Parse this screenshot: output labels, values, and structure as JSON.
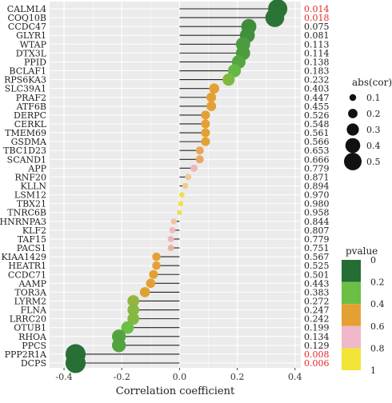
{
  "chart_data": {
    "type": "lollipop",
    "xlabel": "Correlation coefficient",
    "xlim": [
      -0.45,
      0.42
    ],
    "x_ticks": [
      -0.4,
      -0.2,
      0.0,
      0.2,
      0.4
    ],
    "x_tick_labels": [
      "-0.4",
      "-0.2",
      "0.0",
      "0.2",
      "0.4"
    ],
    "grid": true,
    "highlight_color": "#e8272a",
    "highlight_threshold": 0.05,
    "genes": [
      {
        "name": "CALML4",
        "cor": 0.34,
        "pvalue": 0.014
      },
      {
        "name": "COQ10B",
        "cor": 0.33,
        "pvalue": 0.018
      },
      {
        "name": "CCDC47",
        "cor": 0.24,
        "pvalue": 0.075
      },
      {
        "name": "GLYR1",
        "cor": 0.235,
        "pvalue": 0.081
      },
      {
        "name": "WTAP",
        "cor": 0.22,
        "pvalue": 0.113
      },
      {
        "name": "DTX3L",
        "cor": 0.22,
        "pvalue": 0.114
      },
      {
        "name": "PPID",
        "cor": 0.205,
        "pvalue": 0.138
      },
      {
        "name": "BCLAF1",
        "cor": 0.19,
        "pvalue": 0.183
      },
      {
        "name": "RPS6KA3",
        "cor": 0.17,
        "pvalue": 0.232
      },
      {
        "name": "SLC39A1",
        "cor": 0.12,
        "pvalue": 0.403
      },
      {
        "name": "PRAF2",
        "cor": 0.11,
        "pvalue": 0.447
      },
      {
        "name": "ATF6B",
        "cor": 0.11,
        "pvalue": 0.455
      },
      {
        "name": "DERPC",
        "cor": 0.09,
        "pvalue": 0.526
      },
      {
        "name": "CERKL",
        "cor": 0.09,
        "pvalue": 0.548
      },
      {
        "name": "TMEM69",
        "cor": 0.09,
        "pvalue": 0.561
      },
      {
        "name": "GSDMA",
        "cor": 0.09,
        "pvalue": 0.566
      },
      {
        "name": "TBC1D23",
        "cor": 0.07,
        "pvalue": 0.653
      },
      {
        "name": "SCAND1",
        "cor": 0.07,
        "pvalue": 0.666
      },
      {
        "name": "APP",
        "cor": 0.05,
        "pvalue": 0.779
      },
      {
        "name": "RNF20",
        "cor": 0.03,
        "pvalue": 0.871
      },
      {
        "name": "KLLN",
        "cor": 0.02,
        "pvalue": 0.894
      },
      {
        "name": "LSM12",
        "cor": 0.008,
        "pvalue": 0.97
      },
      {
        "name": "TBX21",
        "cor": 0.004,
        "pvalue": 0.98
      },
      {
        "name": "TNRC6B",
        "cor": 0.0,
        "pvalue": 0.958
      },
      {
        "name": "HNRNPA3",
        "cor": -0.02,
        "pvalue": 0.844
      },
      {
        "name": "KLF2",
        "cor": -0.025,
        "pvalue": 0.807
      },
      {
        "name": "TAF15",
        "cor": -0.03,
        "pvalue": 0.779
      },
      {
        "name": "PACS1",
        "cor": -0.03,
        "pvalue": 0.751
      },
      {
        "name": "KIAA1429",
        "cor": -0.08,
        "pvalue": 0.567
      },
      {
        "name": "HEATR1",
        "cor": -0.08,
        "pvalue": 0.525
      },
      {
        "name": "CCDC71",
        "cor": -0.09,
        "pvalue": 0.501
      },
      {
        "name": "AAMP",
        "cor": -0.1,
        "pvalue": 0.443
      },
      {
        "name": "TOR3A",
        "cor": -0.12,
        "pvalue": 0.383
      },
      {
        "name": "LYRM2",
        "cor": -0.16,
        "pvalue": 0.272
      },
      {
        "name": "FLNA",
        "cor": -0.16,
        "pvalue": 0.247
      },
      {
        "name": "LRRC20",
        "cor": -0.16,
        "pvalue": 0.242
      },
      {
        "name": "OTUB1",
        "cor": -0.18,
        "pvalue": 0.199
      },
      {
        "name": "RHOA",
        "cor": -0.21,
        "pvalue": 0.134
      },
      {
        "name": "PPCS",
        "cor": -0.21,
        "pvalue": 0.129
      },
      {
        "name": "PPP2R1A",
        "cor": -0.36,
        "pvalue": 0.008
      },
      {
        "name": "DCPS",
        "cor": -0.36,
        "pvalue": 0.006
      }
    ],
    "size_legend": {
      "title": "abs(cor)",
      "items": [
        {
          "label": "0.1",
          "value": 0.1
        },
        {
          "label": "0.2",
          "value": 0.2
        },
        {
          "label": "0.3",
          "value": 0.3
        },
        {
          "label": "0.4",
          "value": 0.4
        },
        {
          "label": "0.5",
          "value": 0.5
        }
      ]
    },
    "color_legend": {
      "title": "pvalue",
      "items": [
        {
          "label": "0",
          "color": "#256d35"
        },
        {
          "label": "0.2",
          "color": "#6abf45"
        },
        {
          "label": "0.4",
          "color": "#e4a033"
        },
        {
          "label": "0.6",
          "color": "#e4a033"
        },
        {
          "label": "0.8",
          "color": "#f0b8c8"
        },
        {
          "label": "1",
          "color": "#f2e537"
        }
      ],
      "bands": [
        "#256d35",
        "#6abf45",
        "#e4a033",
        "#f0b8c8",
        "#f2e537"
      ]
    }
  }
}
